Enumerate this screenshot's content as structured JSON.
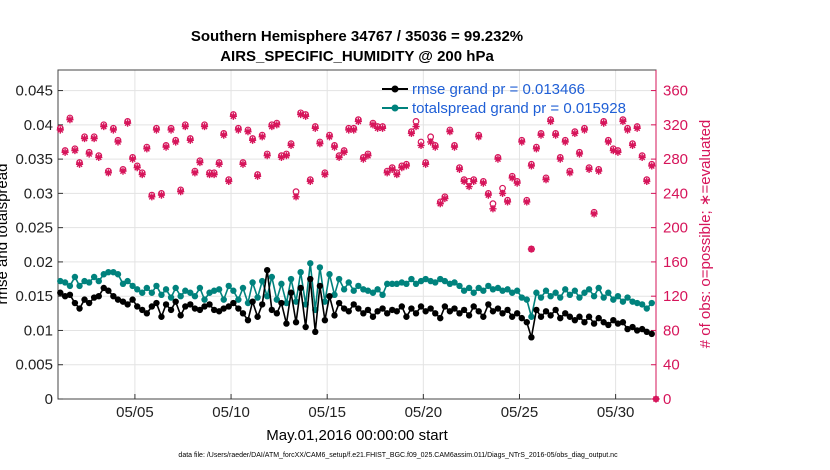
{
  "colors": {
    "rmse": "#000000",
    "spread": "#00827d",
    "obs": "#d6145a",
    "legend_text": "#1f5fd6",
    "grid": "#e3e3e3"
  },
  "chart_data": {
    "type": "line",
    "title_line1": "Southern Hemisphere 34767 / 35036 = 99.232%",
    "title_line2": "AIRS_SPECIFIC_HUMIDITY @ 200 hPa",
    "xlabel": "May.01,2016 00:00:00 start",
    "ylabel_left": "rmse and totalspread",
    "ylabel_right": "# of obs: o=possible; ∗=evaluated",
    "x_unit": "day of May 2016 (fractional)",
    "xlim": [
      1.0,
      32.1
    ],
    "ylim_left": [
      0,
      0.048
    ],
    "ylim_right": [
      0,
      384
    ],
    "x_ticks": [
      5,
      10,
      15,
      20,
      25,
      30
    ],
    "x_tick_labels": [
      "05/05",
      "05/10",
      "05/15",
      "05/20",
      "05/25",
      "05/30"
    ],
    "y_ticks_left": [
      0,
      0.005,
      0.01,
      0.015,
      0.02,
      0.025,
      0.03,
      0.035,
      0.04,
      0.045
    ],
    "y_tick_labels_left": [
      "0",
      "0.005",
      "0.01",
      "0.015",
      "0.02",
      "0.025",
      "0.03",
      "0.035",
      "0.04",
      "0.045"
    ],
    "y_ticks_right": [
      0,
      40,
      80,
      120,
      160,
      200,
      240,
      280,
      320,
      360
    ],
    "y_tick_labels_right": [
      "0",
      "40",
      "80",
      "120",
      "160",
      "200",
      "240",
      "280",
      "320",
      "360"
    ],
    "legend": [
      "rmse grand pr = 0.013466",
      "totalspread grand pr = 0.015928"
    ],
    "footnote": "data file: /Users/raeder/DAI/ATM_forcXX/CAM6_setup/f.e21.FHIST_BGC.f09_025.CAM6assim.011/Diags_NTrS_2016-05/obs_diag_output.nc",
    "grid": true,
    "series": [
      {
        "name": "rmse",
        "axis": "left",
        "x": [
          1.12,
          1.37,
          1.62,
          1.88,
          2.12,
          2.38,
          2.62,
          2.88,
          3.12,
          3.38,
          3.62,
          3.88,
          4.12,
          4.38,
          4.62,
          4.88,
          5.12,
          5.38,
          5.62,
          5.88,
          6.12,
          6.38,
          6.62,
          6.88,
          7.12,
          7.38,
          7.62,
          7.88,
          8.12,
          8.38,
          8.62,
          8.88,
          9.12,
          9.38,
          9.62,
          9.88,
          10.12,
          10.38,
          10.62,
          10.88,
          11.12,
          11.38,
          11.62,
          11.88,
          12.12,
          12.38,
          12.62,
          12.88,
          13.12,
          13.38,
          13.62,
          13.88,
          14.12,
          14.38,
          14.62,
          14.88,
          15.12,
          15.38,
          15.62,
          15.88,
          16.12,
          16.38,
          16.62,
          16.88,
          17.12,
          17.38,
          17.62,
          17.88,
          18.12,
          18.38,
          18.62,
          18.88,
          19.12,
          19.38,
          19.62,
          19.88,
          20.12,
          20.38,
          20.62,
          20.88,
          21.12,
          21.38,
          21.62,
          21.88,
          22.12,
          22.38,
          22.62,
          22.88,
          23.12,
          23.38,
          23.62,
          23.88,
          24.12,
          24.38,
          24.62,
          24.88,
          25.12,
          25.38,
          25.62,
          25.88,
          26.12,
          26.38,
          26.62,
          26.88,
          27.12,
          27.38,
          27.62,
          27.88,
          28.12,
          28.38,
          28.62,
          28.88,
          29.12,
          29.38,
          29.62,
          29.88,
          30.12,
          30.38,
          30.62,
          30.88,
          31.12,
          31.38,
          31.62,
          31.88
        ],
        "values": [
          0.0155,
          0.015,
          0.0152,
          0.014,
          0.0132,
          0.0145,
          0.014,
          0.0148,
          0.015,
          0.0162,
          0.0158,
          0.015,
          0.0145,
          0.0142,
          0.0138,
          0.0145,
          0.0135,
          0.013,
          0.0125,
          0.0135,
          0.014,
          0.012,
          0.0138,
          0.013,
          0.0142,
          0.0122,
          0.0135,
          0.0138,
          0.0132,
          0.013,
          0.0135,
          0.0138,
          0.013,
          0.0128,
          0.0132,
          0.0135,
          0.014,
          0.0132,
          0.0125,
          0.0115,
          0.0142,
          0.012,
          0.0138,
          0.0188,
          0.013,
          0.0125,
          0.014,
          0.011,
          0.0155,
          0.0112,
          0.0162,
          0.0105,
          0.0175,
          0.0098,
          0.0165,
          0.0115,
          0.015,
          0.0122,
          0.014,
          0.0132,
          0.0128,
          0.0138,
          0.0132,
          0.0125,
          0.013,
          0.012,
          0.0128,
          0.0132,
          0.0125,
          0.013,
          0.0128,
          0.0135,
          0.012,
          0.0132,
          0.0125,
          0.0135,
          0.0128,
          0.0132,
          0.0125,
          0.0118,
          0.0135,
          0.0128,
          0.0132,
          0.0125,
          0.013,
          0.0122,
          0.0135,
          0.0128,
          0.012,
          0.0138,
          0.0128,
          0.0132,
          0.0125,
          0.013,
          0.012,
          0.0125,
          0.0118,
          0.0112,
          0.009,
          0.013,
          0.012,
          0.0128,
          0.0122,
          0.013,
          0.0118,
          0.0125,
          0.012,
          0.0115,
          0.012,
          0.0112,
          0.012,
          0.011,
          0.0118,
          0.0112,
          0.0108,
          0.0115,
          0.011,
          0.0112,
          0.0102,
          0.0105,
          0.01,
          0.0102,
          0.0098,
          0.0095
        ]
      },
      {
        "name": "totalspread",
        "axis": "left",
        "x": [
          1.12,
          1.37,
          1.62,
          1.88,
          2.12,
          2.38,
          2.62,
          2.88,
          3.12,
          3.38,
          3.62,
          3.88,
          4.12,
          4.38,
          4.62,
          4.88,
          5.12,
          5.38,
          5.62,
          5.88,
          6.12,
          6.38,
          6.62,
          6.88,
          7.12,
          7.38,
          7.62,
          7.88,
          8.12,
          8.38,
          8.62,
          8.88,
          9.12,
          9.38,
          9.62,
          9.88,
          10.12,
          10.38,
          10.62,
          10.88,
          11.12,
          11.38,
          11.62,
          11.88,
          12.12,
          12.38,
          12.62,
          12.88,
          13.12,
          13.38,
          13.62,
          13.88,
          14.12,
          14.38,
          14.62,
          14.88,
          15.12,
          15.38,
          15.62,
          15.88,
          16.12,
          16.38,
          16.62,
          16.88,
          17.12,
          17.38,
          17.62,
          17.88,
          18.12,
          18.38,
          18.62,
          18.88,
          19.12,
          19.38,
          19.62,
          19.88,
          20.12,
          20.38,
          20.62,
          20.88,
          21.12,
          21.38,
          21.62,
          21.88,
          22.12,
          22.38,
          22.62,
          22.88,
          23.12,
          23.38,
          23.62,
          23.88,
          24.12,
          24.38,
          24.62,
          24.88,
          25.12,
          25.38,
          25.62,
          25.88,
          26.12,
          26.38,
          26.62,
          26.88,
          27.12,
          27.38,
          27.62,
          27.88,
          28.12,
          28.38,
          28.62,
          28.88,
          29.12,
          29.38,
          29.62,
          29.88,
          30.12,
          30.38,
          30.62,
          30.88,
          31.12,
          31.38,
          31.62,
          31.88
        ],
        "values": [
          0.0172,
          0.017,
          0.0165,
          0.0178,
          0.0165,
          0.0172,
          0.017,
          0.0178,
          0.0172,
          0.0182,
          0.0185,
          0.0185,
          0.0182,
          0.0168,
          0.0172,
          0.0165,
          0.016,
          0.0155,
          0.0162,
          0.0155,
          0.0165,
          0.0152,
          0.016,
          0.0148,
          0.0162,
          0.015,
          0.0158,
          0.0155,
          0.015,
          0.0162,
          0.0145,
          0.0155,
          0.0158,
          0.016,
          0.0145,
          0.0165,
          0.0158,
          0.0145,
          0.0162,
          0.014,
          0.017,
          0.0148,
          0.0172,
          0.015,
          0.0178,
          0.0145,
          0.0168,
          0.014,
          0.0175,
          0.0142,
          0.0185,
          0.0138,
          0.0198,
          0.013,
          0.0192,
          0.0142,
          0.0182,
          0.0152,
          0.0175,
          0.016,
          0.017,
          0.0158,
          0.0165,
          0.016,
          0.0158,
          0.0155,
          0.016,
          0.0152,
          0.0168,
          0.0168,
          0.0168,
          0.017,
          0.0168,
          0.0175,
          0.0168,
          0.0172,
          0.0175,
          0.0172,
          0.017,
          0.0175,
          0.0172,
          0.0168,
          0.017,
          0.0165,
          0.0158,
          0.0162,
          0.0155,
          0.0162,
          0.0158,
          0.0165,
          0.016,
          0.0162,
          0.0158,
          0.016,
          0.0155,
          0.0158,
          0.0148,
          0.0145,
          0.012,
          0.0155,
          0.0148,
          0.0158,
          0.015,
          0.0155,
          0.0148,
          0.016,
          0.0152,
          0.0158,
          0.0148,
          0.0155,
          0.016,
          0.015,
          0.0162,
          0.0148,
          0.0155,
          0.0145,
          0.015,
          0.0142,
          0.0148,
          0.0142,
          0.014,
          0.0138,
          0.0132,
          0.014
        ]
      },
      {
        "name": "obs_possible",
        "axis": "right",
        "x": [
          1.12,
          1.37,
          1.62,
          1.88,
          2.12,
          2.38,
          2.62,
          2.88,
          3.12,
          3.38,
          3.62,
          3.88,
          4.12,
          4.38,
          4.62,
          4.88,
          5.12,
          5.38,
          5.62,
          5.88,
          6.12,
          6.38,
          6.62,
          6.88,
          7.12,
          7.38,
          7.62,
          7.88,
          8.12,
          8.38,
          8.62,
          8.88,
          9.12,
          9.38,
          9.62,
          9.88,
          10.12,
          10.38,
          10.62,
          10.88,
          11.12,
          11.38,
          11.62,
          11.88,
          12.12,
          12.38,
          12.62,
          12.88,
          13.12,
          13.38,
          13.62,
          13.88,
          14.12,
          14.38,
          14.62,
          14.88,
          15.12,
          15.38,
          15.62,
          15.88,
          16.12,
          16.38,
          16.62,
          16.88,
          17.12,
          17.38,
          17.62,
          17.88,
          18.12,
          18.38,
          18.62,
          18.88,
          19.12,
          19.38,
          19.62,
          19.88,
          20.12,
          20.38,
          20.62,
          20.88,
          21.12,
          21.38,
          21.62,
          21.88,
          22.12,
          22.38,
          22.62,
          22.88,
          23.12,
          23.38,
          23.62,
          23.88,
          24.12,
          24.38,
          24.62,
          24.88,
          25.12,
          25.38,
          25.62,
          25.88,
          26.12,
          26.38,
          26.62,
          26.88,
          27.12,
          27.38,
          27.62,
          27.88,
          28.12,
          28.38,
          28.62,
          28.88,
          29.12,
          29.38,
          29.62,
          29.88,
          30.12,
          30.38,
          30.62,
          30.88,
          31.12,
          31.38,
          31.62,
          31.88
        ],
        "values": [
          316,
          290,
          328,
          292,
          276,
          306,
          288,
          306,
          284,
          320,
          266,
          316,
          302,
          268,
          324,
          282,
          272,
          264,
          294,
          238,
          316,
          240,
          296,
          316,
          302,
          244,
          320,
          304,
          266,
          278,
          320,
          264,
          264,
          276,
          310,
          256,
          332,
          316,
          276,
          314,
          304,
          262,
          308,
          286,
          320,
          322,
          284,
          286,
          298,
          242,
          334,
          332,
          256,
          318,
          300,
          264,
          308,
          296,
          284,
          290,
          316,
          316,
          326,
          282,
          286,
          322,
          318,
          318,
          266,
          270,
          264,
          272,
          274,
          312,
          324,
          300,
          276,
          306,
          296,
          230,
          236,
          314,
          296,
          270,
          256,
          254,
          256,
          308,
          254,
          240,
          228,
          282,
          246,
          232,
          260,
          254,
          302,
          232,
          274,
          294,
          310,
          258,
          326,
          310,
          282,
          302,
          266,
          312,
          288,
          316,
          270,
          218,
          268,
          324,
          302,
          292,
          290,
          326,
          316,
          298,
          318,
          284,
          256,
          274
        ]
      },
      {
        "name": "obs_evaluated",
        "axis": "right",
        "x": [
          1.12,
          1.37,
          1.62,
          1.88,
          2.12,
          2.38,
          2.62,
          2.88,
          3.12,
          3.38,
          3.62,
          3.88,
          4.12,
          4.38,
          4.62,
          4.88,
          5.12,
          5.38,
          5.62,
          5.88,
          6.12,
          6.38,
          6.62,
          6.88,
          7.12,
          7.38,
          7.62,
          7.88,
          8.12,
          8.38,
          8.62,
          8.88,
          9.12,
          9.38,
          9.62,
          9.88,
          10.12,
          10.38,
          10.62,
          10.88,
          11.12,
          11.38,
          11.62,
          11.88,
          12.12,
          12.38,
          12.62,
          12.88,
          13.12,
          13.38,
          13.62,
          13.88,
          14.12,
          14.38,
          14.62,
          14.88,
          15.12,
          15.38,
          15.62,
          15.88,
          16.12,
          16.38,
          16.62,
          16.88,
          17.12,
          17.38,
          17.62,
          17.88,
          18.12,
          18.38,
          18.62,
          18.88,
          19.12,
          19.38,
          19.62,
          19.88,
          20.12,
          20.38,
          20.62,
          20.88,
          21.12,
          21.38,
          21.62,
          21.88,
          22.12,
          22.38,
          22.62,
          22.88,
          23.12,
          23.38,
          23.62,
          23.88,
          24.12,
          24.38,
          24.62,
          24.88,
          25.12,
          25.38,
          25.62,
          25.88,
          26.12,
          26.38,
          26.62,
          26.88,
          27.12,
          27.38,
          27.62,
          27.88,
          28.12,
          28.38,
          28.62,
          28.88,
          29.12,
          29.38,
          29.62,
          29.88,
          30.12,
          30.38,
          30.62,
          30.88,
          31.12,
          31.38,
          31.62,
          31.88
        ],
        "values": [
          314,
          288,
          326,
          290,
          274,
          304,
          286,
          304,
          282,
          318,
          264,
          314,
          300,
          266,
          322,
          280,
          270,
          262,
          292,
          236,
          314,
          238,
          294,
          314,
          300,
          242,
          318,
          302,
          264,
          276,
          318,
          262,
          262,
          274,
          308,
          254,
          330,
          314,
          274,
          312,
          302,
          260,
          306,
          284,
          318,
          320,
          282,
          284,
          296,
          236,
          332,
          330,
          254,
          316,
          298,
          262,
          306,
          294,
          282,
          288,
          314,
          314,
          324,
          280,
          284,
          320,
          316,
          316,
          264,
          268,
          262,
          270,
          272,
          310,
          318,
          296,
          274,
          300,
          294,
          228,
          234,
          312,
          294,
          268,
          254,
          248,
          254,
          306,
          252,
          238,
          222,
          280,
          240,
          230,
          258,
          252,
          300,
          230,
          272,
          292,
          308,
          256,
          324,
          308,
          280,
          300,
          264,
          310,
          286,
          314,
          268,
          216,
          266,
          322,
          300,
          290,
          288,
          324,
          314,
          296,
          316,
          282,
          254,
          272
        ]
      },
      {
        "name": "obs_outlier",
        "axis": "right",
        "x": [
          25.62
        ],
        "values": [
          175
        ]
      }
    ]
  }
}
